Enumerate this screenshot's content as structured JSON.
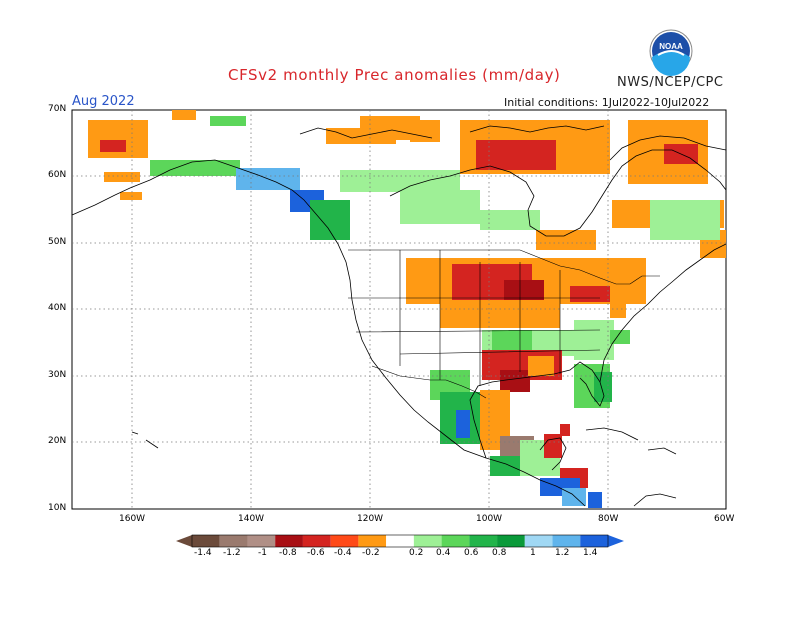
{
  "map": {
    "title": "CFSv2 monthly Prec anomalies (mm/day)",
    "agency": "NWS/NCEP/CPC",
    "logo_text": "NOAA",
    "month": "Aug 2022",
    "initial_conditions": "Initial conditions: 1Jul2022-10Jul2022",
    "lat_labels": [
      "70N",
      "60N",
      "50N",
      "40N",
      "30N",
      "20N",
      "10N"
    ],
    "lon_labels": [
      "160W",
      "140W",
      "120W",
      "100W",
      "80W",
      "60W"
    ]
  },
  "colorbar": {
    "labels": [
      "-1.4",
      "-1.2",
      "-1",
      "-0.8",
      "-0.6",
      "-0.4",
      "-0.2",
      "0.2",
      "0.4",
      "0.6",
      "0.8",
      "1",
      "1.2",
      "1.4"
    ],
    "colors": [
      "#6b4a3a",
      "#9a7a6e",
      "#b08f86",
      "#a80f14",
      "#d42420",
      "#ff4a18",
      "#ff9a14",
      "#ffffff",
      "#9ef096",
      "#5cd65a",
      "#22b44a",
      "#0a9a3a",
      "#a0d8f4",
      "#5fb4ec",
      "#1c62dc"
    ]
  }
}
